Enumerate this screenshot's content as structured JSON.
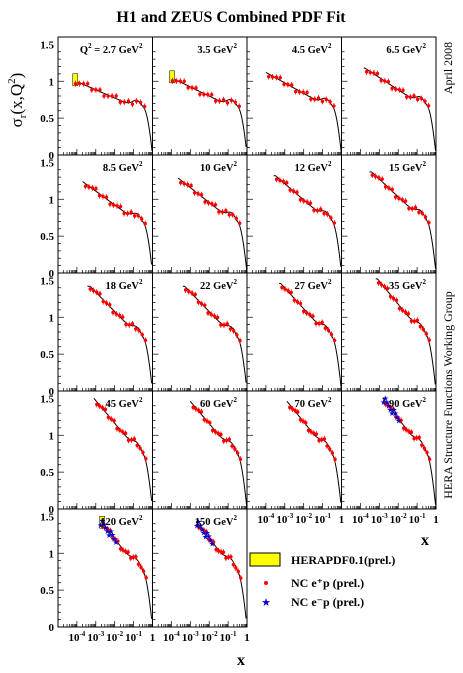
{
  "title": "H1 and ZEUS Combined PDF Fit",
  "ylabel_main": "σ",
  "ylabel_sub": "r",
  "ylabel_args": "(x,Q",
  "ylabel_sup": "2",
  "ylabel_close": ")",
  "side_date": "April 2008",
  "side_group": "HERA Structure Functions Working Group",
  "xlabel": "x",
  "q2_prefix": "Q",
  "q2_prefix_sup": "2",
  "q2_prefix_eq": " = ",
  "legend": {
    "band": "HERAPDF0.1(prel.)",
    "ep_plus": "NC e⁺p (prel.)",
    "ep_minus": "NC e⁻p (prel.)"
  },
  "colors": {
    "band": "#ffff00",
    "ep_plus": "#ff0000",
    "ep_minus": "#0000cc",
    "curve": "#000000"
  },
  "chart_data": {
    "type": "scatter",
    "x_scale": "log",
    "xlim": [
      1e-05,
      1
    ],
    "ylim": [
      0,
      1.5
    ],
    "y_ticks": [
      "0",
      "0.5",
      "1",
      "1.5"
    ],
    "x_ticks": [
      {
        "label": "10",
        "sup": "-4"
      },
      {
        "label": "10",
        "sup": "-3"
      },
      {
        "label": "10",
        "sup": "-2"
      },
      {
        "label": "10",
        "sup": "-1"
      },
      {
        "label": "1",
        "sup": ""
      }
    ],
    "panels": [
      {
        "q2": "2.7 GeV",
        "sup": "2",
        "xmin": 6e-05,
        "peak": 1.02,
        "xpk": 6e-05,
        "minus": false
      },
      {
        "q2": "3.5 GeV",
        "sup": "2",
        "xmin": 8e-05,
        "peak": 1.06,
        "xpk": 8e-05,
        "minus": false
      },
      {
        "q2": "4.5 GeV",
        "sup": "2",
        "xmin": 0.0001,
        "peak": 1.12,
        "xpk": 0.0001,
        "minus": false
      },
      {
        "q2": "6.5 GeV",
        "sup": "2",
        "xmin": 0.00015,
        "peak": 1.18,
        "xpk": 0.00017,
        "minus": false
      },
      {
        "q2": "8.5 GeV",
        "sup": "2",
        "xmin": 0.0002,
        "peak": 1.24,
        "xpk": 0.0002,
        "minus": false
      },
      {
        "q2": "10 GeV",
        "sup": "2",
        "xmin": 0.00022,
        "peak": 1.28,
        "xpk": 0.00025,
        "minus": false
      },
      {
        "q2": "12 GeV",
        "sup": "2",
        "xmin": 0.00026,
        "peak": 1.32,
        "xpk": 0.00032,
        "minus": false
      },
      {
        "q2": "15 GeV",
        "sup": "2",
        "xmin": 0.0003,
        "peak": 1.37,
        "xpk": 0.0004,
        "minus": false
      },
      {
        "q2": "18 GeV",
        "sup": "2",
        "xmin": 0.00036,
        "peak": 1.42,
        "xpk": 0.0005,
        "minus": false
      },
      {
        "q2": "22 GeV",
        "sup": "2",
        "xmin": 0.0004,
        "peak": 1.42,
        "xpk": 0.0005,
        "minus": false
      },
      {
        "q2": "27 GeV",
        "sup": "2",
        "xmin": 0.0005,
        "peak": 1.46,
        "xpk": 0.0006,
        "minus": false
      },
      {
        "q2": "35 GeV",
        "sup": "2",
        "xmin": 0.00065,
        "peak": 1.52,
        "xpk": 0.0008,
        "minus": false
      },
      {
        "q2": "45 GeV",
        "sup": "2",
        "xmin": 0.0008,
        "peak": 1.5,
        "xpk": 0.0008,
        "minus": false
      },
      {
        "q2": "60 GeV",
        "sup": "2",
        "xmin": 0.001,
        "peak": 1.46,
        "xpk": 0.001,
        "minus": false
      },
      {
        "q2": "70 GeV",
        "sup": "2",
        "xmin": 0.0013,
        "peak": 1.46,
        "xpk": 0.0013,
        "minus": false
      },
      {
        "q2": "90 GeV",
        "sup": "2",
        "xmin": 0.0015,
        "peak": 1.5,
        "xpk": 0.0016,
        "minus": true
      },
      {
        "q2": "120 GeV",
        "sup": "2",
        "xmin": 0.0016,
        "peak": 1.42,
        "xpk": 0.002,
        "minus": true
      },
      {
        "q2": "150 GeV",
        "sup": "2",
        "xmin": 0.002,
        "peak": 1.42,
        "xpk": 0.0022,
        "minus": true
      }
    ]
  }
}
